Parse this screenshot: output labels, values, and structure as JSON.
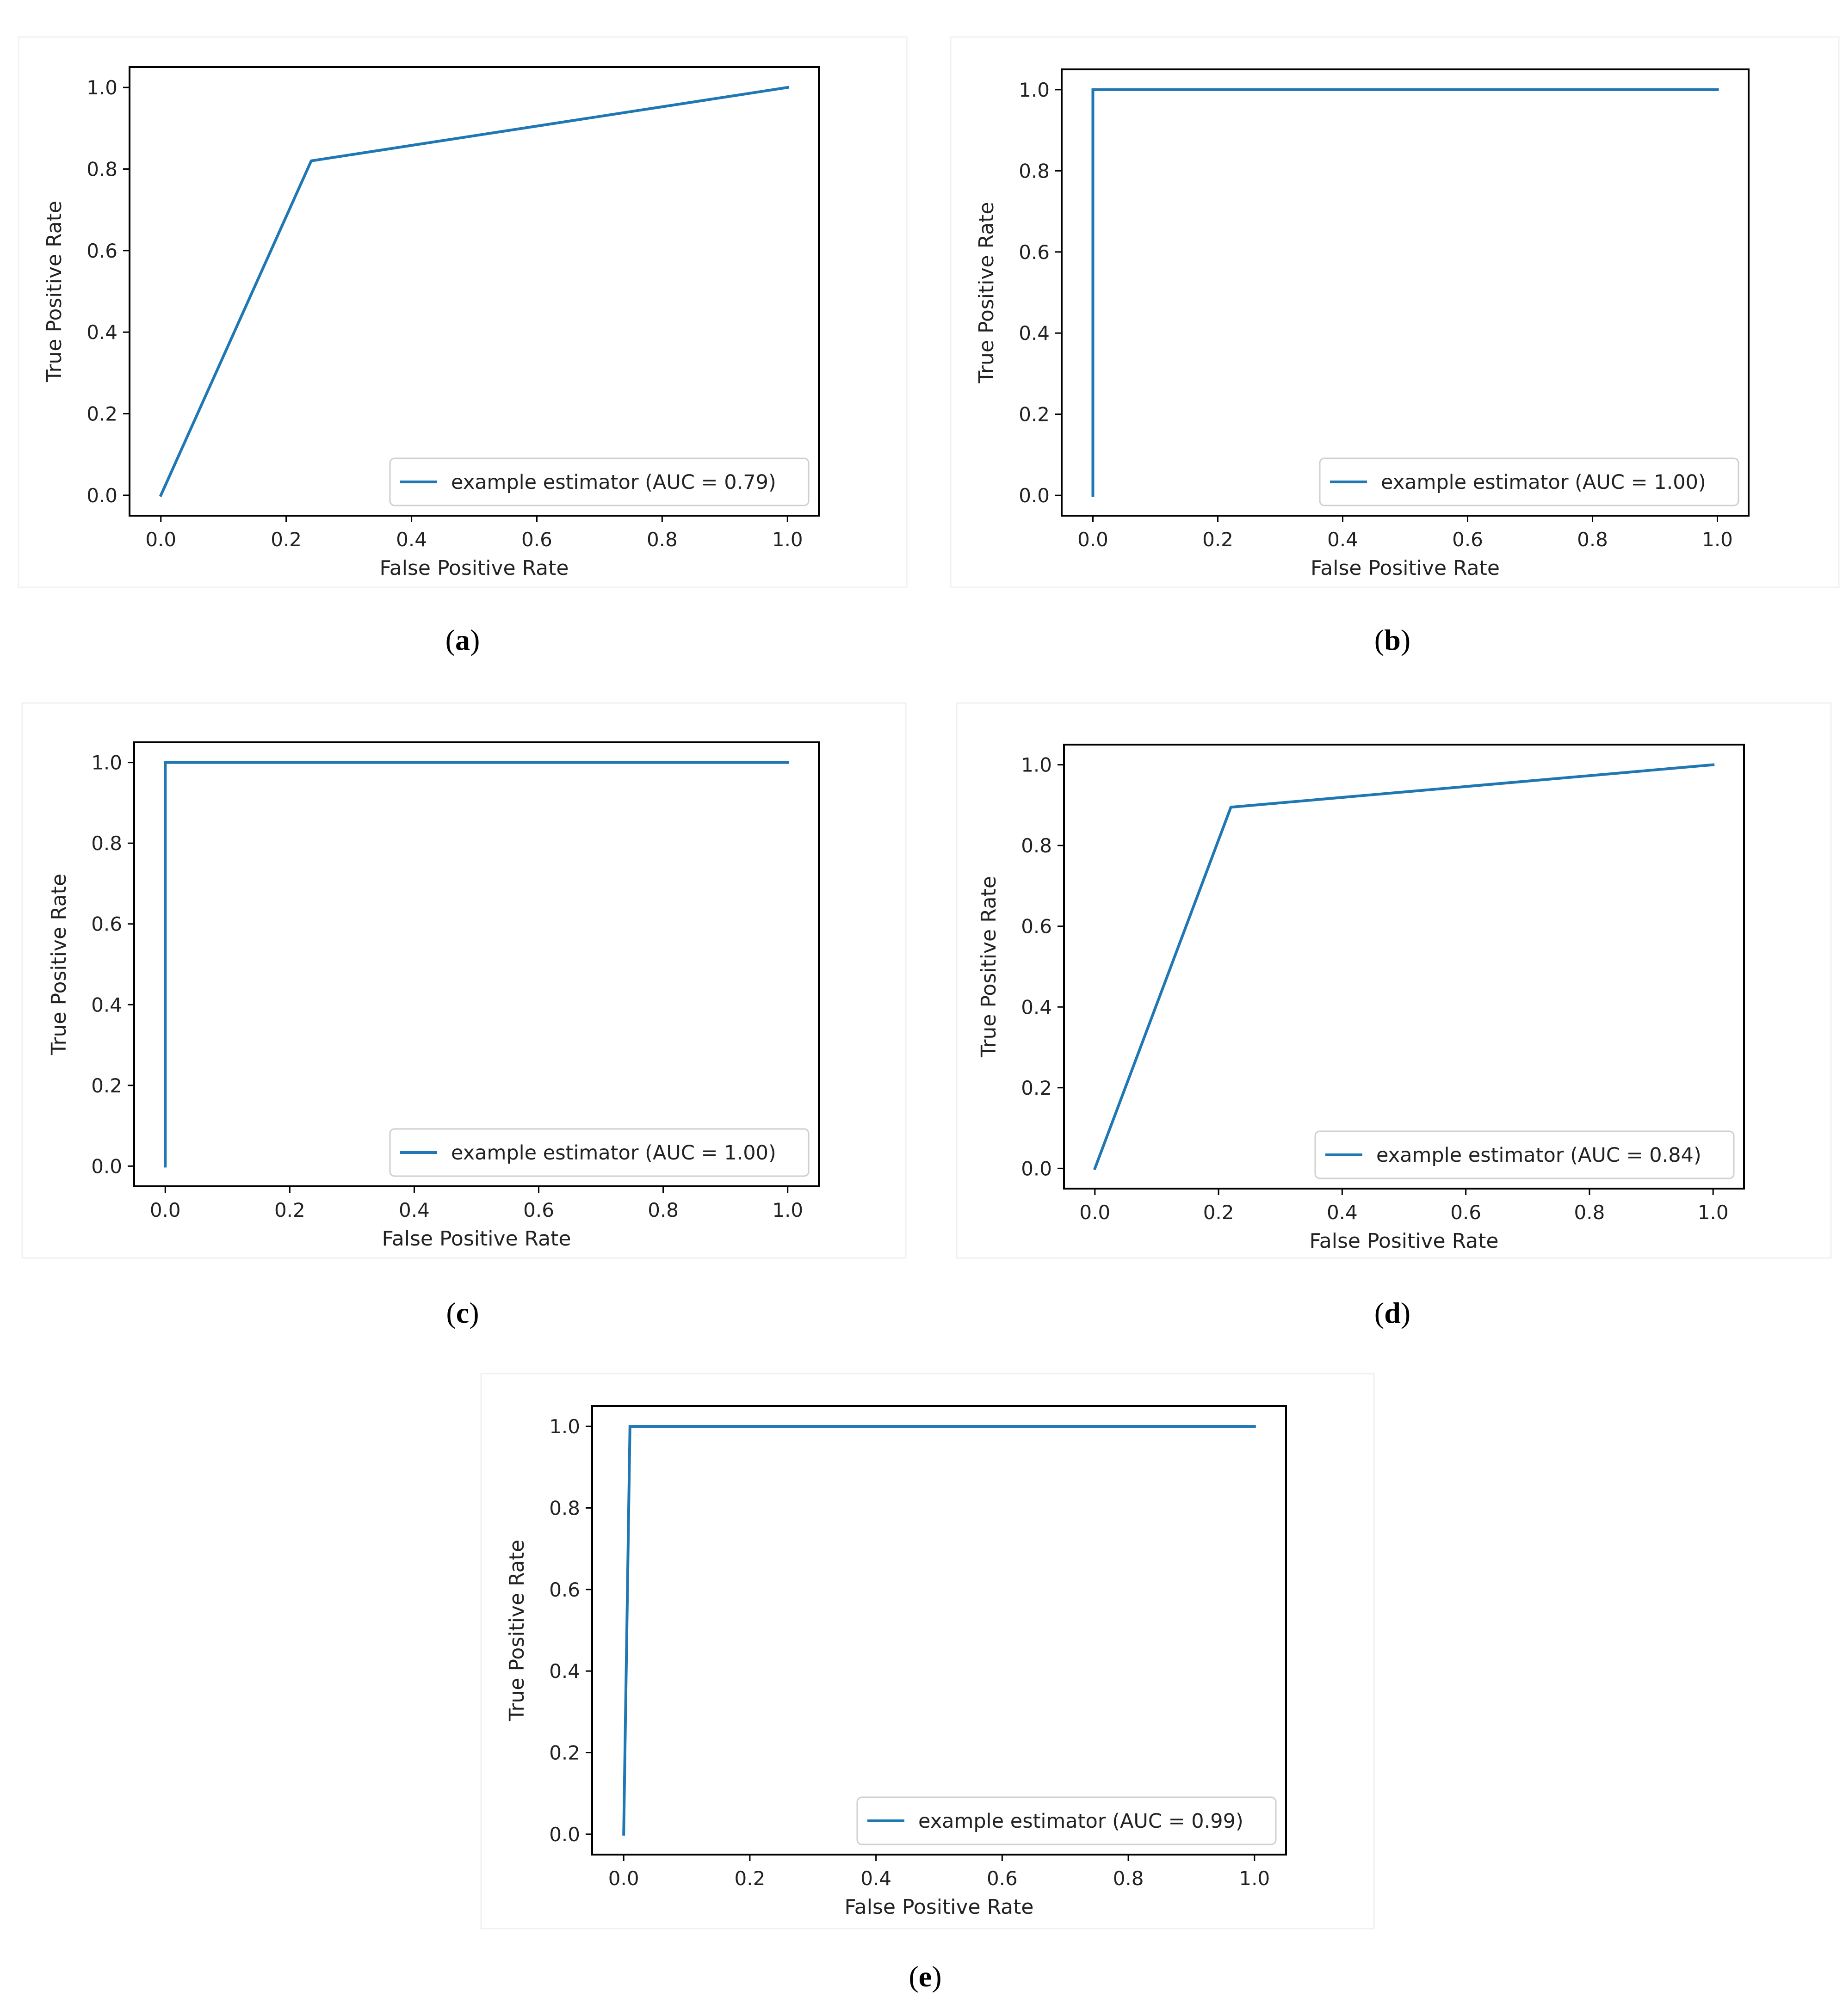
{
  "colors": {
    "series": "#1f77b4"
  },
  "chart_data": [
    {
      "type": "line",
      "panel": "a",
      "caption": "a",
      "xlabel": "False Positive Rate",
      "ylabel": "True Positive Rate",
      "xlim": [
        -0.05,
        1.05
      ],
      "ylim": [
        -0.05,
        1.05
      ],
      "xticks": [
        "0.0",
        "0.2",
        "0.4",
        "0.6",
        "0.8",
        "1.0"
      ],
      "yticks": [
        "0.0",
        "0.2",
        "0.4",
        "0.6",
        "0.8",
        "1.0"
      ],
      "legend_position": "lower-right",
      "grid": false,
      "series": [
        {
          "name": "example estimator (AUC = 0.79)",
          "x": [
            0.0,
            0.24,
            1.0
          ],
          "y": [
            0.0,
            0.82,
            1.0
          ]
        }
      ]
    },
    {
      "type": "line",
      "panel": "b",
      "caption": "b",
      "xlabel": "False Positive Rate",
      "ylabel": "True Positive Rate",
      "xlim": [
        -0.05,
        1.05
      ],
      "ylim": [
        -0.05,
        1.05
      ],
      "xticks": [
        "0.0",
        "0.2",
        "0.4",
        "0.6",
        "0.8",
        "1.0"
      ],
      "yticks": [
        "0.0",
        "0.2",
        "0.4",
        "0.6",
        "0.8",
        "1.0"
      ],
      "legend_position": "lower-right",
      "grid": false,
      "series": [
        {
          "name": "example estimator (AUC = 1.00)",
          "x": [
            0.0,
            0.0,
            1.0
          ],
          "y": [
            0.0,
            1.0,
            1.0
          ]
        }
      ]
    },
    {
      "type": "line",
      "panel": "c",
      "caption": "c",
      "xlabel": "False Positive Rate",
      "ylabel": "True Positive Rate",
      "xlim": [
        -0.05,
        1.05
      ],
      "ylim": [
        -0.05,
        1.05
      ],
      "xticks": [
        "0.0",
        "0.2",
        "0.4",
        "0.6",
        "0.8",
        "1.0"
      ],
      "yticks": [
        "0.0",
        "0.2",
        "0.4",
        "0.6",
        "0.8",
        "1.0"
      ],
      "legend_position": "lower-right",
      "grid": false,
      "series": [
        {
          "name": "example estimator (AUC = 1.00)",
          "x": [
            0.0,
            0.0,
            1.0
          ],
          "y": [
            0.0,
            1.0,
            1.0
          ]
        }
      ]
    },
    {
      "type": "line",
      "panel": "d",
      "caption": "d",
      "xlabel": "False Positive Rate",
      "ylabel": "True Positive Rate",
      "xlim": [
        -0.05,
        1.05
      ],
      "ylim": [
        -0.05,
        1.05
      ],
      "xticks": [
        "0.0",
        "0.2",
        "0.4",
        "0.6",
        "0.8",
        "1.0"
      ],
      "yticks": [
        "0.0",
        "0.2",
        "0.4",
        "0.6",
        "0.8",
        "1.0"
      ],
      "legend_position": "lower-right",
      "grid": false,
      "series": [
        {
          "name": "example estimator (AUC = 0.84)",
          "x": [
            0.0,
            0.22,
            1.0
          ],
          "y": [
            0.0,
            0.895,
            1.0
          ]
        }
      ]
    },
    {
      "type": "line",
      "panel": "e",
      "caption": "e",
      "xlabel": "False Positive Rate",
      "ylabel": "True Positive Rate",
      "xlim": [
        -0.05,
        1.05
      ],
      "ylim": [
        -0.05,
        1.05
      ],
      "xticks": [
        "0.0",
        "0.2",
        "0.4",
        "0.6",
        "0.8",
        "1.0"
      ],
      "yticks": [
        "0.0",
        "0.2",
        "0.4",
        "0.6",
        "0.8",
        "1.0"
      ],
      "legend_position": "lower-right",
      "grid": false,
      "series": [
        {
          "name": "example estimator (AUC = 0.99)",
          "x": [
            0.0,
            0.01,
            1.0
          ],
          "y": [
            0.0,
            1.0,
            1.0
          ]
        }
      ]
    }
  ]
}
